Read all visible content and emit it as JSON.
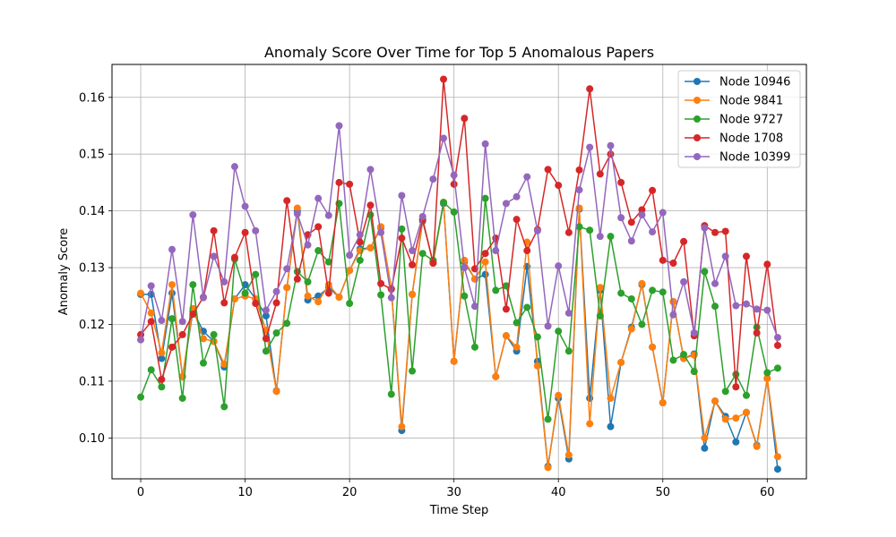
{
  "chart_data": {
    "type": "line",
    "title": "Anomaly Score Over Time for Top 5 Anomalous Papers",
    "xlabel": "Time Step",
    "ylabel": "Anomaly Score",
    "xlim": [
      -2.75,
      63.75
    ],
    "ylim": [
      0.0928,
      0.1658
    ],
    "xticks": [
      0,
      10,
      20,
      30,
      40,
      50,
      60
    ],
    "yticks": [
      0.1,
      0.11,
      0.12,
      0.13,
      0.14,
      0.15,
      0.16
    ],
    "ytick_labels": [
      "0.10",
      "0.11",
      "0.12",
      "0.13",
      "0.14",
      "0.15",
      "0.16"
    ],
    "grid": true,
    "legend_position": "top-right",
    "x": [
      0,
      1,
      2,
      3,
      4,
      5,
      6,
      7,
      8,
      9,
      10,
      11,
      12,
      13,
      14,
      15,
      16,
      17,
      18,
      19,
      20,
      21,
      22,
      23,
      24,
      25,
      26,
      27,
      28,
      29,
      30,
      31,
      32,
      33,
      34,
      35,
      36,
      37,
      38,
      39,
      40,
      41,
      42,
      43,
      44,
      45,
      46,
      47,
      48,
      49,
      50,
      51,
      52,
      53,
      54,
      55,
      56,
      57,
      58,
      59,
      60,
      61
    ],
    "series": [
      {
        "name": "Node 10946",
        "color": "#1f77b4",
        "values": [
          0.1253,
          0.1253,
          0.114,
          0.1255,
          0.1108,
          0.1223,
          0.1188,
          0.117,
          0.1125,
          0.1245,
          0.127,
          0.1245,
          0.1215,
          0.1083,
          0.1265,
          0.14,
          0.1243,
          0.125,
          0.1265,
          0.1248,
          0.1295,
          0.1333,
          0.1335,
          0.137,
          0.1263,
          0.1013,
          0.1253,
          0.1382,
          0.131,
          0.1413,
          0.1135,
          0.131,
          0.128,
          0.1288,
          0.1108,
          0.118,
          0.1153,
          0.1302,
          0.1135,
          0.095,
          0.107,
          0.0963,
          0.1403,
          0.107,
          0.126,
          0.102,
          0.1133,
          0.1195,
          0.127,
          0.116,
          0.1062,
          0.124,
          0.114,
          0.1148,
          0.0982,
          0.1065,
          0.1038,
          0.0993,
          0.1045,
          0.0987,
          0.1105,
          0.0945
        ]
      },
      {
        "name": "Node 9841",
        "color": "#ff7f0e",
        "values": [
          0.1255,
          0.122,
          0.115,
          0.127,
          0.1108,
          0.1228,
          0.1175,
          0.117,
          0.113,
          0.1245,
          0.125,
          0.1245,
          0.119,
          0.1082,
          0.1265,
          0.1405,
          0.125,
          0.124,
          0.127,
          0.1248,
          0.1295,
          0.133,
          0.1335,
          0.1372,
          0.1263,
          0.102,
          0.1253,
          0.1385,
          0.1308,
          0.1415,
          0.1135,
          0.1313,
          0.128,
          0.131,
          0.1108,
          0.118,
          0.116,
          0.1345,
          0.1127,
          0.0948,
          0.1075,
          0.097,
          0.1405,
          0.1025,
          0.1265,
          0.107,
          0.1133,
          0.1192,
          0.1272,
          0.116,
          0.1062,
          0.124,
          0.114,
          0.1146,
          0.1,
          0.1065,
          0.1033,
          0.1035,
          0.1045,
          0.0985,
          0.1105,
          0.0967
        ]
      },
      {
        "name": "Node 9727",
        "color": "#2ca02c",
        "values": [
          0.1072,
          0.112,
          0.109,
          0.121,
          0.107,
          0.127,
          0.1132,
          0.1182,
          0.1055,
          0.1315,
          0.1255,
          0.1288,
          0.1153,
          0.1185,
          0.1202,
          0.1293,
          0.1275,
          0.133,
          0.131,
          0.1413,
          0.1237,
          0.1313,
          0.1393,
          0.1252,
          0.1077,
          0.1368,
          0.1118,
          0.1325,
          0.1313,
          0.1415,
          0.1398,
          0.125,
          0.116,
          0.1422,
          0.126,
          0.1268,
          0.1203,
          0.123,
          0.1178,
          0.1033,
          0.1188,
          0.1153,
          0.1372,
          0.1366,
          0.1215,
          0.1355,
          0.1255,
          0.1245,
          0.12,
          0.126,
          0.1257,
          0.1137,
          0.1147,
          0.1117,
          0.1293,
          0.1232,
          0.1082,
          0.1112,
          0.1075,
          0.1195,
          0.1115,
          0.1123
        ]
      },
      {
        "name": "Node 1708",
        "color": "#d62728",
        "values": [
          0.1182,
          0.1205,
          0.1103,
          0.116,
          0.1182,
          0.1218,
          0.1248,
          0.1365,
          0.1238,
          0.1318,
          0.1362,
          0.1237,
          0.1175,
          0.1238,
          0.1418,
          0.128,
          0.1358,
          0.1372,
          0.1255,
          0.145,
          0.1447,
          0.1345,
          0.141,
          0.1272,
          0.1262,
          0.1352,
          0.1305,
          0.1385,
          0.1308,
          0.1632,
          0.1447,
          0.1563,
          0.1298,
          0.1325,
          0.1352,
          0.1227,
          0.1385,
          0.133,
          0.1367,
          0.1473,
          0.1445,
          0.1362,
          0.1472,
          0.1615,
          0.1465,
          0.15,
          0.145,
          0.138,
          0.1402,
          0.1436,
          0.1313,
          0.1308,
          0.1346,
          0.118,
          0.1374,
          0.1362,
          0.1364,
          0.109,
          0.132,
          0.1185,
          0.1306,
          0.1163
        ]
      },
      {
        "name": "Node 10399",
        "color": "#9467bd",
        "values": [
          0.1173,
          0.1268,
          0.1207,
          0.1332,
          0.1205,
          0.1393,
          0.1247,
          0.132,
          0.1275,
          0.1478,
          0.1408,
          0.1365,
          0.1225,
          0.1258,
          0.1298,
          0.1395,
          0.134,
          0.1422,
          0.1392,
          0.155,
          0.1322,
          0.1358,
          0.1473,
          0.1362,
          0.1247,
          0.1427,
          0.133,
          0.139,
          0.1456,
          0.1528,
          0.1463,
          0.13,
          0.1232,
          0.1518,
          0.133,
          0.1413,
          0.1425,
          0.146,
          0.1365,
          0.1197,
          0.1303,
          0.122,
          0.1437,
          0.1512,
          0.1355,
          0.1515,
          0.1388,
          0.1347,
          0.1393,
          0.1363,
          0.1397,
          0.1217,
          0.1275,
          0.1185,
          0.137,
          0.1272,
          0.132,
          0.1233,
          0.1236,
          0.1227,
          0.1225,
          0.1177
        ]
      }
    ]
  }
}
